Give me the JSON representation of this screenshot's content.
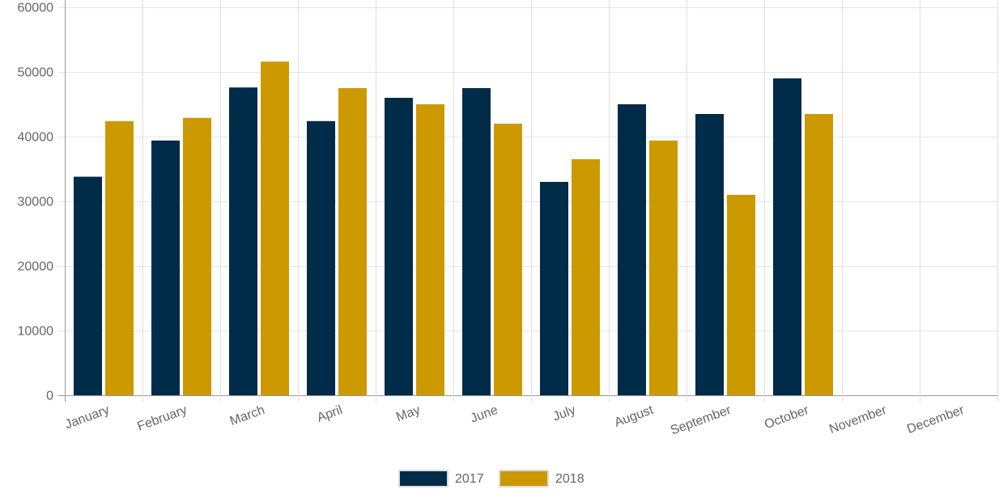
{
  "chart_data": {
    "type": "bar",
    "categories": [
      "January",
      "February",
      "March",
      "April",
      "May",
      "June",
      "July",
      "August",
      "September",
      "October",
      "November",
      "December"
    ],
    "series": [
      {
        "name": "2017",
        "color": "#002b49",
        "values": [
          33800,
          39400,
          47600,
          42400,
          46000,
          47500,
          33000,
          45000,
          43500,
          49000,
          null,
          null
        ]
      },
      {
        "name": "2018",
        "color": "#cc9900",
        "values": [
          42400,
          42900,
          51600,
          47500,
          45000,
          42000,
          36500,
          39400,
          31000,
          43500,
          null,
          null
        ]
      }
    ],
    "ylim": [
      0,
      60000
    ],
    "yticks": [
      0,
      10000,
      20000,
      30000,
      40000,
      50000,
      60000
    ],
    "grid": true,
    "legend_position": "bottom"
  }
}
